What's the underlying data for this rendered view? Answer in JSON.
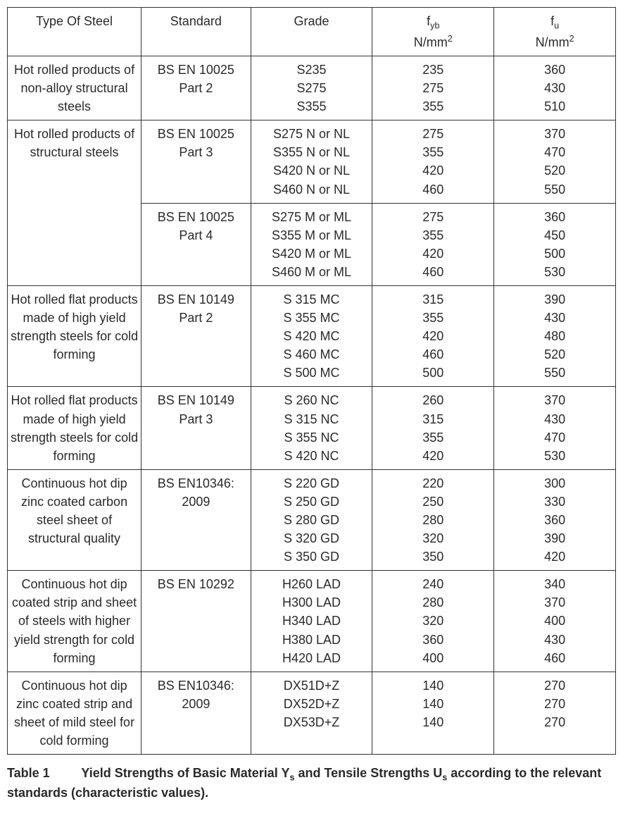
{
  "table": {
    "type": "table",
    "border_color": "#333333",
    "background_color": "#ffffff",
    "text_color": "#2a2a2a",
    "font_family": "Arial",
    "font_size_pt": 13,
    "column_widths_pct": [
      22,
      18,
      20,
      20,
      20
    ],
    "alignment": "center",
    "headers": {
      "type_of_steel": "Type Of Steel",
      "standard": "Standard",
      "grade": "Grade",
      "fyb_label": "f",
      "fyb_sub": "yb",
      "fyb_unit_prefix": "N/mm",
      "fyb_unit_sup": "2",
      "fu_label": "f",
      "fu_sub": "u",
      "fu_unit_prefix": "N/mm",
      "fu_unit_sup": "2"
    },
    "rows": [
      {
        "type": "Hot rolled products of non-alloy structural steels",
        "type_rowspan": 1,
        "standard": "BS EN 10025\nPart 2",
        "grade": "S235\nS275\nS355",
        "fyb": "235\n275\n355",
        "fu": "360\n430\n510"
      },
      {
        "type": "Hot rolled products of structural steels",
        "type_rowspan": 2,
        "standard": "BS EN 10025\nPart 3",
        "grade": "S275 N or NL\nS355 N or NL\nS420 N or NL\nS460 N or NL",
        "fyb": "275\n355\n420\n460",
        "fu": "370\n470\n520\n550"
      },
      {
        "standard": "BS EN 10025\nPart 4",
        "grade": "S275 M or ML\nS355 M or ML\nS420 M or ML\nS460 M or ML",
        "fyb": "275\n355\n420\n460",
        "fu": "360\n450\n500\n530"
      },
      {
        "type": "Hot rolled flat products made of high yield strength steels for cold forming",
        "type_rowspan": 1,
        "standard": "BS EN 10149\nPart 2",
        "grade": "S 315 MC\nS 355 MC\nS 420 MC\nS 460 MC\nS 500 MC",
        "fyb": "315\n355\n420\n460\n500",
        "fu": "390\n430\n480\n520\n550"
      },
      {
        "type": "Hot rolled flat products made of high yield strength steels for cold forming",
        "type_rowspan": 1,
        "standard": "BS EN 10149\nPart 3",
        "grade": "S 260 NC\nS 315 NC\nS 355 NC\nS 420 NC",
        "fyb": "260\n315\n355\n420",
        "fu": "370\n430\n470\n530"
      },
      {
        "type": "Continuous hot dip zinc coated carbon steel sheet of structural quality",
        "type_rowspan": 1,
        "standard": "BS EN10346:\n2009",
        "grade": "S 220 GD\nS 250 GD\nS 280 GD\nS 320 GD\nS 350 GD",
        "fyb": "220\n250\n280\n320\n350",
        "fu": "300\n330\n360\n390\n420"
      },
      {
        "type": "Continuous hot dip coated strip and sheet of steels with higher yield strength for cold forming",
        "type_rowspan": 1,
        "standard": "BS EN 10292",
        "grade": "H260 LAD\nH300 LAD\nH340 LAD\nH380 LAD\nH420 LAD",
        "fyb": "240\n280\n320\n360\n400",
        "fu": "340\n370\n400\n430\n460"
      },
      {
        "type": "Continuous hot dip zinc coated strip and sheet of mild steel for cold forming",
        "type_rowspan": 1,
        "standard": "BS EN10346:\n2009",
        "grade": "DX51D+Z\nDX52D+Z\nDX53D+Z",
        "fyb": "140\n140\n140",
        "fu": "270\n270\n270"
      }
    ]
  },
  "caption": {
    "lead": "Table 1",
    "text_before_ys": "Yield Strengths of Basic Material Y",
    "ys_sub": "s",
    "text_mid": " and Tensile Strengths U",
    "us_sub": "s",
    "text_after": " according to the relevant standards (characteristic values)."
  }
}
